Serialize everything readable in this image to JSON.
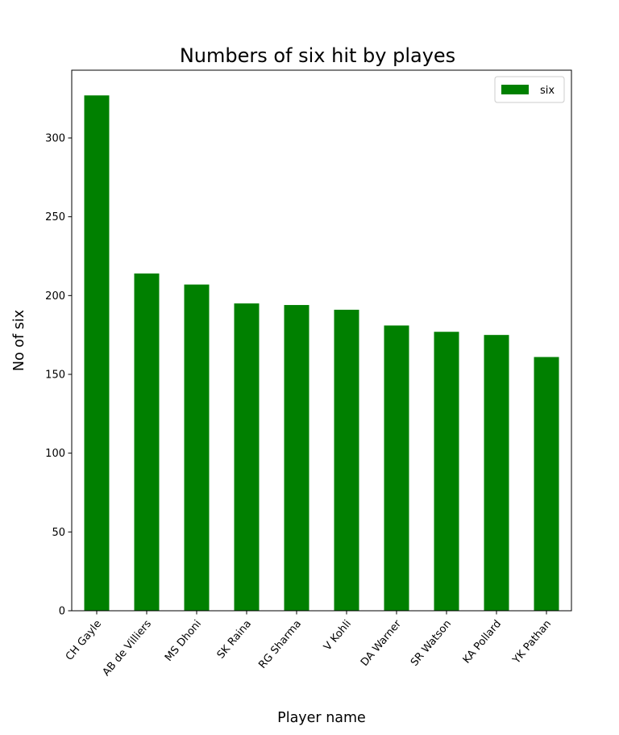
{
  "chart_data": {
    "type": "bar",
    "title": "Numbers of six hit by playes",
    "xlabel": "Player name",
    "ylabel": "No of six",
    "categories": [
      "CH Gayle",
      "AB de Villiers",
      "MS Dhoni",
      "SK Raina",
      "RG Sharma",
      "V Kohli",
      "DA Warner",
      "SR Watson",
      "KA Pollard",
      "YK Pathan"
    ],
    "series": [
      {
        "name": "six",
        "values": [
          327,
          214,
          207,
          195,
          194,
          191,
          181,
          177,
          175,
          161
        ],
        "color": "#008000"
      }
    ],
    "ylim": [
      0,
      343
    ],
    "yticks": [
      0,
      50,
      100,
      150,
      200,
      250,
      300
    ],
    "legend": "top-right",
    "grid": false
  }
}
